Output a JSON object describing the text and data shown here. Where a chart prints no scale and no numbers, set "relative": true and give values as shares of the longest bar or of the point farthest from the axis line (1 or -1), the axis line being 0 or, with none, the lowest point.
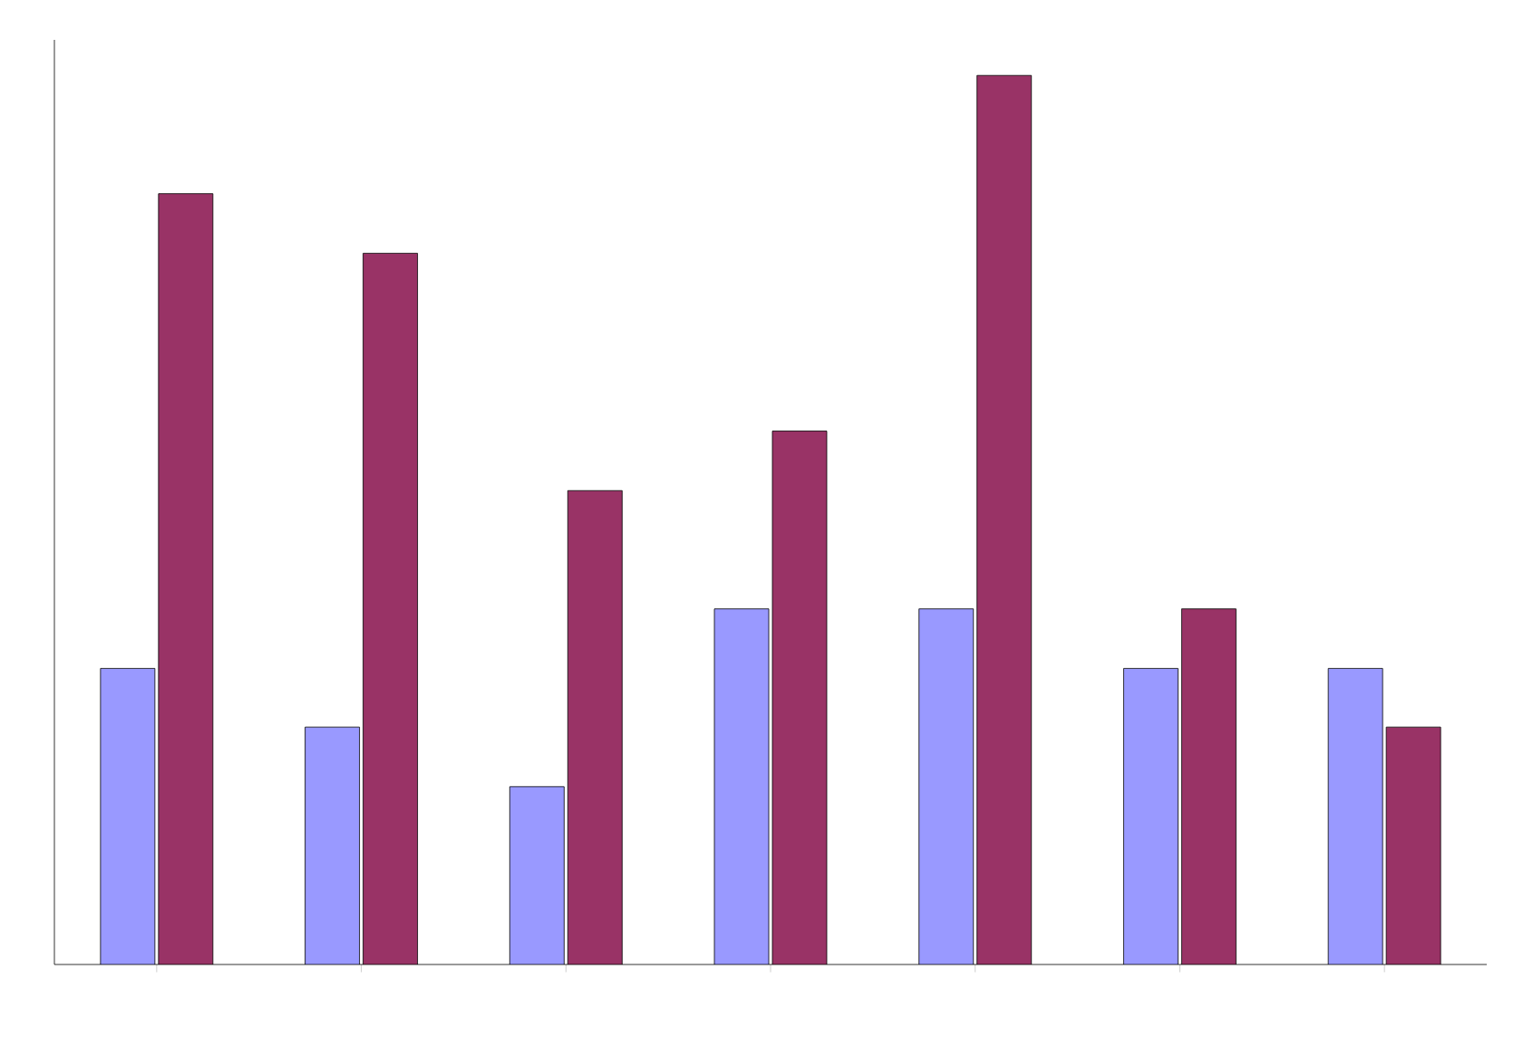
{
  "chart_data": {
    "type": "bar",
    "relative": true,
    "categories": [
      null,
      null,
      null,
      null,
      null,
      null,
      null
    ],
    "series": [
      {
        "color": "#9999ff",
        "values": [
          0.333,
          0.267,
          0.2,
          0.4,
          0.4,
          0.333,
          0.333
        ]
      },
      {
        "color": "#993366",
        "values": [
          0.867,
          0.8,
          0.533,
          0.6,
          1,
          0.4,
          0.267
        ]
      }
    ]
  }
}
